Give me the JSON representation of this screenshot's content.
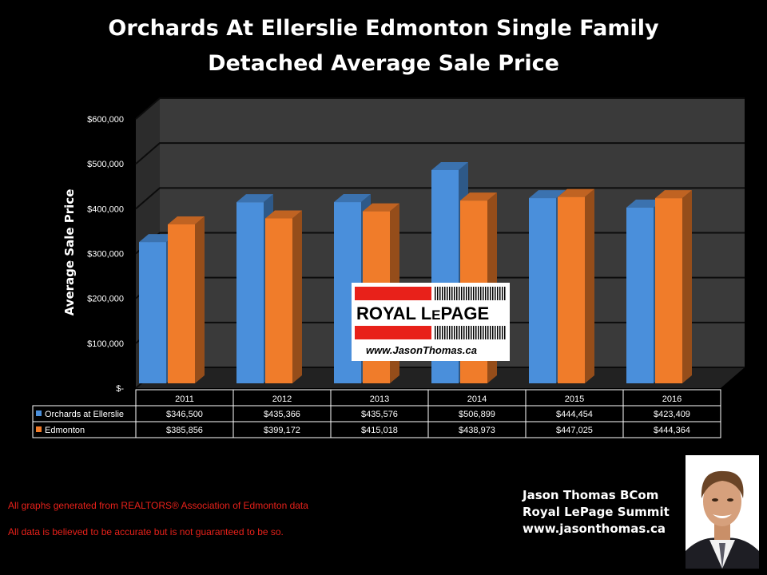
{
  "title": {
    "line1": "Orchards At Ellerslie Edmonton Single Family",
    "line2": "Detached Average Sale Price"
  },
  "chart_data": {
    "type": "bar",
    "categories": [
      "2011",
      "2012",
      "2013",
      "2014",
      "2015",
      "2016"
    ],
    "series": [
      {
        "name": "Orchards at Ellerslie",
        "color": "#4a8fdb",
        "values": [
          346500,
          435366,
          435576,
          506899,
          444454,
          423409
        ],
        "labels": [
          "$346,500",
          "$435,366",
          "$435,576",
          "$506,899",
          "$444,454",
          "$423,409"
        ]
      },
      {
        "name": "Edmonton",
        "color": "#f07c2a",
        "values": [
          385856,
          399172,
          415018,
          438973,
          447025,
          444364
        ],
        "labels": [
          "$385,856",
          "$399,172",
          "$415,018",
          "$438,973",
          "$447,025",
          "$444,364"
        ]
      }
    ],
    "ylabel": "Average Sale Price",
    "ylim": [
      0,
      600000
    ],
    "yticks": [
      {
        "value": 0,
        "label": "$-"
      },
      {
        "value": 100000,
        "label": "$100,000"
      },
      {
        "value": 200000,
        "label": "$200,000"
      },
      {
        "value": 300000,
        "label": "$300,000"
      },
      {
        "value": 400000,
        "label": "$400,000"
      },
      {
        "value": 500000,
        "label": "$500,000"
      },
      {
        "value": 600000,
        "label": "$600,000"
      }
    ],
    "grid": true,
    "legend": "data-table"
  },
  "logo": {
    "brand_part1": "ROYAL L",
    "brand_small": "E",
    "brand_part2": "PAGE",
    "website": "www.JasonThomas.ca"
  },
  "footer": {
    "note1": "All graphs generated from REALTORS® Association of Edmonton data",
    "note2": "All data is believed to be accurate but is not guaranteed to be so."
  },
  "agent": {
    "name": "Jason Thomas BCom",
    "company": "Royal LePage Summit",
    "website": "www.jasonthomas.ca"
  },
  "colors": {
    "wall": "#3a3a3a",
    "floor": "#222222",
    "accent_red": "#e8211a"
  }
}
